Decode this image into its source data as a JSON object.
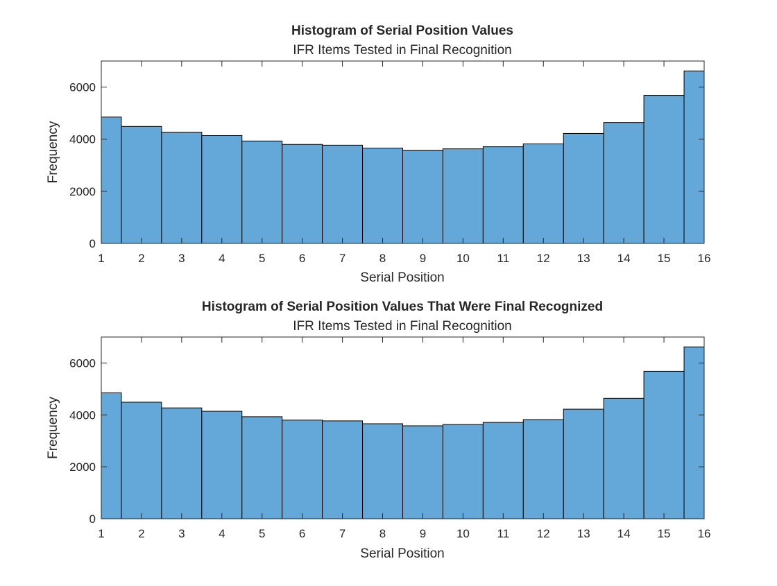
{
  "colors": {
    "bar_fill": "#63a8d8",
    "bar_edge": "#000000",
    "axis": "#262626",
    "background": "#ffffff"
  },
  "chart_data": [
    {
      "type": "bar",
      "title": "Histogram of Serial Position Values",
      "subtitle": "IFR Items Tested in Final Recognition",
      "xlabel": "Serial Position",
      "ylabel": "Frequency",
      "xlim": [
        1,
        16
      ],
      "ylim": [
        0,
        7000
      ],
      "xticks": [
        1,
        2,
        3,
        4,
        5,
        6,
        7,
        8,
        9,
        10,
        11,
        12,
        13,
        14,
        15,
        16
      ],
      "yticks": [
        0,
        2000,
        4000,
        6000
      ],
      "grid": false,
      "bin_edges": [
        1,
        1.5,
        2.5,
        3.5,
        4.5,
        5.5,
        6.5,
        7.5,
        8.5,
        9.5,
        10.5,
        11.5,
        12.5,
        13.5,
        14.5,
        15.5,
        16
      ],
      "values": [
        4850,
        4490,
        4270,
        4140,
        3930,
        3800,
        3770,
        3660,
        3580,
        3630,
        3710,
        3820,
        4220,
        4640,
        5680,
        6620
      ]
    },
    {
      "type": "bar",
      "title": "Histogram of Serial Position Values That Were Final Recognized",
      "subtitle": "IFR Items Tested in Final Recognition",
      "xlabel": "Serial Position",
      "ylabel": "Frequency",
      "xlim": [
        1,
        16
      ],
      "ylim": [
        0,
        7000
      ],
      "xticks": [
        1,
        2,
        3,
        4,
        5,
        6,
        7,
        8,
        9,
        10,
        11,
        12,
        13,
        14,
        15,
        16
      ],
      "yticks": [
        0,
        2000,
        4000,
        6000
      ],
      "grid": false,
      "bin_edges": [
        1,
        1.5,
        2.5,
        3.5,
        4.5,
        5.5,
        6.5,
        7.5,
        8.5,
        9.5,
        10.5,
        11.5,
        12.5,
        13.5,
        14.5,
        15.5,
        16
      ],
      "values": [
        4850,
        4490,
        4270,
        4140,
        3930,
        3800,
        3770,
        3660,
        3580,
        3630,
        3710,
        3820,
        4220,
        4640,
        5680,
        6620
      ]
    }
  ]
}
